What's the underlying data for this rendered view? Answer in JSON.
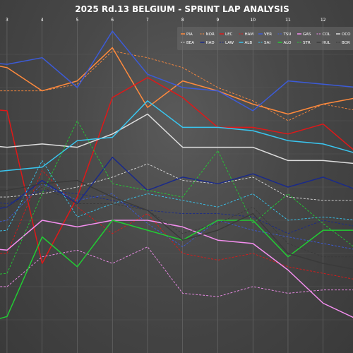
{
  "chart_data": {
    "type": "line",
    "title": "2025 Rd.13 BELGIUM - SPRINT LAP ANALYSIS",
    "xlabel": "",
    "ylabel": "",
    "x": [
      2,
      3,
      4,
      5,
      6,
      7,
      8,
      9,
      10,
      11,
      12,
      13
    ],
    "xticks": [
      3,
      4,
      5,
      6,
      7,
      8,
      9,
      10,
      11,
      12
    ],
    "xlim": [
      2.8,
      12.85
    ],
    "ylim": [
      0,
      100
    ],
    "grid": true,
    "legend_position": "top-right",
    "series": [
      {
        "name": "PIA",
        "color": "#ff8a3d",
        "dash": "solid",
        "values": [
          88,
          86,
          79,
          82,
          92,
          74,
          82,
          79,
          75,
          72,
          75,
          77
        ]
      },
      {
        "name": "NOR",
        "color": "#ff8a3d",
        "dash": "dashed",
        "values": [
          79,
          79,
          79,
          81,
          91,
          89,
          86,
          80,
          76,
          70,
          75,
          73
        ]
      },
      {
        "name": "LEC",
        "color": "#e01818",
        "dash": "solid",
        "values": [
          74,
          73,
          27,
          47,
          77,
          83,
          77,
          68,
          68,
          66,
          69,
          60
        ]
      },
      {
        "name": "HAM",
        "color": "#e01818",
        "dash": "dashed",
        "values": [
          30,
          30,
          55,
          44,
          36,
          42,
          30,
          28,
          30,
          26,
          24,
          22
        ]
      },
      {
        "name": "VER",
        "color": "#3c5bd8",
        "dash": "solid",
        "values": [
          88,
          87,
          89,
          80,
          97,
          84,
          80,
          79,
          73,
          82,
          81,
          80
        ]
      },
      {
        "name": "TSU",
        "color": "#3c5bd8",
        "dash": "dashed",
        "values": [
          38,
          40,
          51,
          46,
          48,
          39,
          32,
          40,
          37,
          35,
          33,
          31
        ]
      },
      {
        "name": "GAS",
        "color": "#f58ff0",
        "dash": "solid",
        "values": [
          32,
          31,
          40,
          38,
          40,
          40,
          38,
          34,
          33,
          25,
          15,
          10
        ]
      },
      {
        "name": "COL",
        "color": "#f58ff0",
        "dash": "dashed",
        "values": [
          20,
          20,
          29,
          31,
          27,
          32,
          18,
          17,
          20,
          18,
          19,
          19
        ]
      },
      {
        "name": "OCO",
        "color": "#dddddd",
        "dash": "solid",
        "values": [
          63,
          62,
          63,
          62,
          66,
          72,
          62,
          62,
          62,
          58,
          58,
          57
        ]
      },
      {
        "name": "BEA",
        "color": "#dddddd",
        "dash": "dashed",
        "values": [
          47,
          47,
          48,
          50,
          53,
          57,
          52,
          51,
          53,
          47,
          46,
          46
        ]
      },
      {
        "name": "HAD",
        "color": "#1a2a8a",
        "dash": "solid",
        "values": [
          42,
          44,
          52,
          45,
          59,
          49,
          53,
          51,
          54,
          50,
          53,
          49
        ]
      },
      {
        "name": "LAW",
        "color": "#1a2a8a",
        "dash": "dashed",
        "values": [
          46,
          45,
          49,
          48,
          46,
          43,
          42,
          42,
          41,
          36,
          40,
          38
        ]
      },
      {
        "name": "ALB",
        "color": "#39c6f0",
        "dash": "solid",
        "values": [
          54,
          55,
          56,
          64,
          65,
          76,
          68,
          68,
          67,
          64,
          63,
          60
        ]
      },
      {
        "name": "SAI",
        "color": "#39c6f0",
        "dash": "dashed",
        "values": [
          36,
          37,
          58,
          41,
          45,
          48,
          46,
          44,
          48,
          40,
          41,
          40
        ]
      },
      {
        "name": "ALO",
        "color": "#22cc33",
        "dash": "solid",
        "values": [
          8,
          11,
          35,
          26,
          40,
          37,
          34,
          40,
          40,
          29,
          37,
          37
        ]
      },
      {
        "name": "STR",
        "color": "#22cc33",
        "dash": "dashed",
        "values": [
          23,
          24,
          48,
          70,
          51,
          49,
          47,
          61,
          39,
          48,
          39,
          31
        ]
      },
      {
        "name": "HUL",
        "color": "#3a3a3a",
        "dash": "solid",
        "values": [
          48,
          49,
          51,
          52,
          47,
          43,
          34,
          37,
          42,
          30,
          27,
          25
        ]
      },
      {
        "name": "BOR",
        "color": "#3a3a3a",
        "dash": "dashed",
        "values": [
          45,
          44,
          50,
          45,
          45,
          43,
          36,
          39,
          44,
          33,
          29,
          29
        ]
      }
    ]
  }
}
